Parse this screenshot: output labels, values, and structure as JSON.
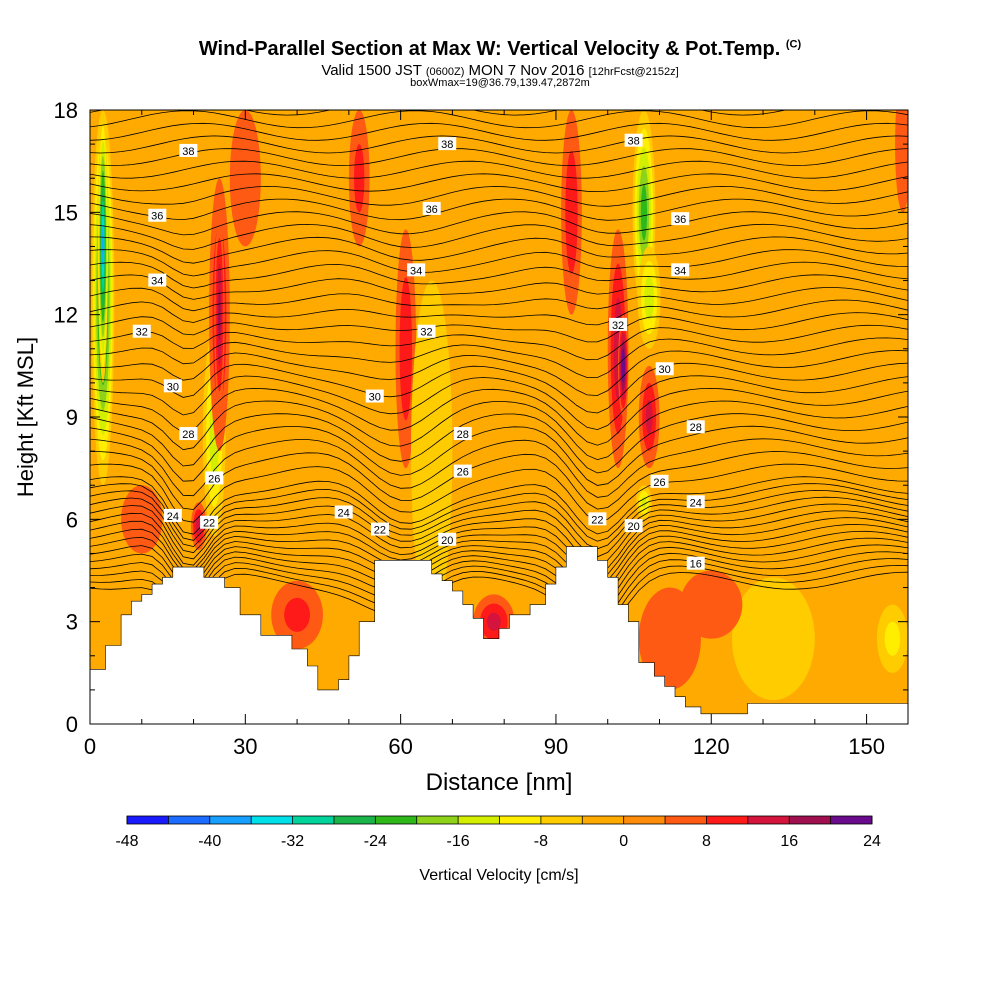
{
  "header": {
    "title": "Wind-Parallel Section at Max W: Vertical Velocity & Pot.Temp.",
    "title_tag": "(C)",
    "valid_prefix": "Valid 1500 JST",
    "valid_small": "(0600Z)",
    "valid_main": "MON 7 Nov 2016",
    "valid_tail": "[12hrFcst@2152z]",
    "box_info": "boxWmax=19@36.79,139.47,2872m"
  },
  "chart_data": {
    "type": "heatmap",
    "xlabel": "Distance [nm]",
    "ylabel": "Height [Kft MSL]",
    "xlim": [
      0,
      158
    ],
    "ylim": [
      0,
      18
    ],
    "xticks": [
      0,
      30,
      60,
      90,
      120,
      150
    ],
    "yticks": [
      0,
      3,
      6,
      9,
      12,
      15,
      18
    ],
    "colorbar": {
      "label": "Vertical Velocity [cm/s]",
      "tick_labels": [
        "-48",
        "-40",
        "-32",
        "-24",
        "-16",
        "-8",
        "0",
        "8",
        "16",
        "24"
      ],
      "levels": [
        -48,
        -44,
        -40,
        -36,
        -32,
        -28,
        -24,
        -20,
        -16,
        -12,
        -8,
        -4,
        0,
        4,
        8,
        12,
        16,
        20,
        24
      ],
      "colors": [
        "#1a1aff",
        "#1c6cff",
        "#17a0ff",
        "#00e0e8",
        "#00d49a",
        "#1bb44a",
        "#2eb81a",
        "#8ed21a",
        "#d4ee00",
        "#ffee00",
        "#ffcc00",
        "#ffaa00",
        "#ff8c0a",
        "#ff5a14",
        "#ff1a1a",
        "#d4143c",
        "#a01050",
        "#6a0a8c"
      ]
    },
    "background_color": "#ffaa00",
    "terrain": [
      [
        0,
        1.6
      ],
      [
        1,
        1.6
      ],
      [
        3,
        1.6
      ],
      [
        3,
        2.3
      ],
      [
        6,
        2.3
      ],
      [
        6,
        3.2
      ],
      [
        8,
        3.2
      ],
      [
        8,
        3.6
      ],
      [
        10,
        3.6
      ],
      [
        10,
        3.8
      ],
      [
        12,
        3.8
      ],
      [
        12,
        4.1
      ],
      [
        14,
        4.1
      ],
      [
        14,
        4.3
      ],
      [
        16,
        4.3
      ],
      [
        16,
        4.6
      ],
      [
        22,
        4.6
      ],
      [
        22,
        4.3
      ],
      [
        26,
        4.3
      ],
      [
        26,
        4.0
      ],
      [
        29,
        4.0
      ],
      [
        29,
        3.2
      ],
      [
        33,
        3.2
      ],
      [
        33,
        2.6
      ],
      [
        39,
        2.6
      ],
      [
        39,
        2.2
      ],
      [
        42,
        2.2
      ],
      [
        42,
        1.7
      ],
      [
        44,
        1.7
      ],
      [
        44,
        1.0
      ],
      [
        48,
        1.0
      ],
      [
        48,
        1.3
      ],
      [
        50,
        1.3
      ],
      [
        50,
        2.0
      ],
      [
        52,
        2.0
      ],
      [
        52,
        3.0
      ],
      [
        55,
        3.0
      ],
      [
        55,
        4.8
      ],
      [
        66,
        4.8
      ],
      [
        66,
        4.4
      ],
      [
        68,
        4.4
      ],
      [
        68,
        4.2
      ],
      [
        70,
        4.2
      ],
      [
        70,
        3.9
      ],
      [
        72,
        3.9
      ],
      [
        72,
        3.5
      ],
      [
        74,
        3.5
      ],
      [
        74,
        3.1
      ],
      [
        76,
        3.1
      ],
      [
        76,
        2.5
      ],
      [
        79,
        2.5
      ],
      [
        79,
        2.8
      ],
      [
        81,
        2.8
      ],
      [
        81,
        3.2
      ],
      [
        85,
        3.2
      ],
      [
        85,
        3.5
      ],
      [
        88,
        3.5
      ],
      [
        88,
        4.1
      ],
      [
        90,
        4.1
      ],
      [
        90,
        4.6
      ],
      [
        92,
        4.6
      ],
      [
        92,
        5.2
      ],
      [
        98,
        5.2
      ],
      [
        98,
        4.8
      ],
      [
        100,
        4.8
      ],
      [
        100,
        4.3
      ],
      [
        102,
        4.3
      ],
      [
        102,
        3.5
      ],
      [
        104,
        3.5
      ],
      [
        104,
        3.0
      ],
      [
        106,
        3.0
      ],
      [
        106,
        1.8
      ],
      [
        109,
        1.8
      ],
      [
        109,
        1.4
      ],
      [
        111,
        1.4
      ],
      [
        111,
        1.1
      ],
      [
        113,
        1.1
      ],
      [
        113,
        0.8
      ],
      [
        115,
        0.8
      ],
      [
        115,
        0.5
      ],
      [
        118,
        0.5
      ],
      [
        118,
        0.3
      ],
      [
        127,
        0.3
      ],
      [
        127,
        0.6
      ],
      [
        158,
        0.6
      ],
      [
        158,
        0
      ]
    ],
    "vertical_velocity_features": [
      {
        "x": 2.5,
        "y": 12.5,
        "rx": 2.2,
        "ry": 5.5,
        "w": -30
      },
      {
        "x": 2.5,
        "y": 14.0,
        "rx": 1.0,
        "ry": 4.0,
        "w": -36
      },
      {
        "x": 24,
        "y": 8.5,
        "rx": 2.2,
        "ry": 3.0,
        "w": -14
      },
      {
        "x": 21,
        "y": 5.8,
        "rx": 1.5,
        "ry": 0.7,
        "w": 14
      },
      {
        "x": 25,
        "y": 12.0,
        "rx": 2.0,
        "ry": 4.0,
        "w": 12
      },
      {
        "x": 25,
        "y": 12.0,
        "rx": 1.0,
        "ry": 3.0,
        "w": 16
      },
      {
        "x": 30,
        "y": 16.0,
        "rx": 3.0,
        "ry": 2.0,
        "w": 6
      },
      {
        "x": 52,
        "y": 16.0,
        "rx": 2.0,
        "ry": 2.0,
        "w": 8
      },
      {
        "x": 61,
        "y": 11.0,
        "rx": 2.0,
        "ry": 3.5,
        "w": 10
      },
      {
        "x": 66,
        "y": 8.0,
        "rx": 4.0,
        "ry": 5.0,
        "w": -6
      },
      {
        "x": 40,
        "y": 3.2,
        "rx": 5.0,
        "ry": 1.0,
        "w": 8
      },
      {
        "x": 78,
        "y": 3.0,
        "rx": 4.0,
        "ry": 0.8,
        "w": 12
      },
      {
        "x": 93,
        "y": 15.0,
        "rx": 2.0,
        "ry": 3.0,
        "w": 10
      },
      {
        "x": 102,
        "y": 11.0,
        "rx": 2.0,
        "ry": 3.5,
        "w": 14
      },
      {
        "x": 103,
        "y": 10.5,
        "rx": 1.0,
        "ry": 1.5,
        "w": 24
      },
      {
        "x": 107,
        "y": 15.0,
        "rx": 2.2,
        "ry": 3.0,
        "w": -22
      },
      {
        "x": 108,
        "y": 12.5,
        "rx": 2.2,
        "ry": 1.5,
        "w": -14
      },
      {
        "x": 108,
        "y": 9.0,
        "rx": 2.0,
        "ry": 1.5,
        "w": 12
      },
      {
        "x": 107,
        "y": 6.5,
        "rx": 1.5,
        "ry": 0.5,
        "w": -12
      },
      {
        "x": 135,
        "y": 8.0,
        "rx": 25.0,
        "ry": 4.0,
        "w": 2
      },
      {
        "x": 132,
        "y": 2.5,
        "rx": 8.0,
        "ry": 1.8,
        "w": -4
      },
      {
        "x": 155,
        "y": 2.5,
        "rx": 3.0,
        "ry": 1.0,
        "w": -8
      },
      {
        "x": 120,
        "y": 3.5,
        "rx": 6.0,
        "ry": 1.0,
        "w": 4
      },
      {
        "x": 112,
        "y": 2.5,
        "rx": 6.0,
        "ry": 1.5,
        "w": 4
      },
      {
        "x": 157,
        "y": 17.0,
        "rx": 1.5,
        "ry": 2.0,
        "w": 6
      },
      {
        "x": 10,
        "y": 6.0,
        "rx": 4.0,
        "ry": 1.0,
        "w": 4
      }
    ],
    "potential_temperature_labels": [
      {
        "text": "38",
        "x": 19,
        "y": 16.8
      },
      {
        "text": "36",
        "x": 13,
        "y": 14.9
      },
      {
        "text": "34",
        "x": 13,
        "y": 13.0
      },
      {
        "text": "32",
        "x": 10,
        "y": 11.5
      },
      {
        "text": "30",
        "x": 16,
        "y": 9.9
      },
      {
        "text": "28",
        "x": 19,
        "y": 8.5
      },
      {
        "text": "26",
        "x": 24,
        "y": 7.2
      },
      {
        "text": "24",
        "x": 16,
        "y": 6.1
      },
      {
        "text": "22",
        "x": 23,
        "y": 5.9
      },
      {
        "text": "38",
        "x": 69,
        "y": 17.0
      },
      {
        "text": "36",
        "x": 66,
        "y": 15.1
      },
      {
        "text": "34",
        "x": 63,
        "y": 13.3
      },
      {
        "text": "32",
        "x": 65,
        "y": 11.5
      },
      {
        "text": "30",
        "x": 55,
        "y": 9.6
      },
      {
        "text": "28",
        "x": 72,
        "y": 8.5
      },
      {
        "text": "26",
        "x": 72,
        "y": 7.4
      },
      {
        "text": "24",
        "x": 49,
        "y": 6.2
      },
      {
        "text": "22",
        "x": 56,
        "y": 5.7
      },
      {
        "text": "20",
        "x": 69,
        "y": 5.4
      },
      {
        "text": "38",
        "x": 105,
        "y": 17.1
      },
      {
        "text": "36",
        "x": 114,
        "y": 14.8
      },
      {
        "text": "34",
        "x": 114,
        "y": 13.3
      },
      {
        "text": "32",
        "x": 102,
        "y": 11.7
      },
      {
        "text": "30",
        "x": 111,
        "y": 10.4
      },
      {
        "text": "28",
        "x": 117,
        "y": 8.7
      },
      {
        "text": "26",
        "x": 110,
        "y": 7.1
      },
      {
        "text": "24",
        "x": 117,
        "y": 6.5
      },
      {
        "text": "22",
        "x": 98,
        "y": 6.0
      },
      {
        "text": "20",
        "x": 105,
        "y": 5.8
      },
      {
        "text": "16",
        "x": 117,
        "y": 4.7
      }
    ]
  }
}
